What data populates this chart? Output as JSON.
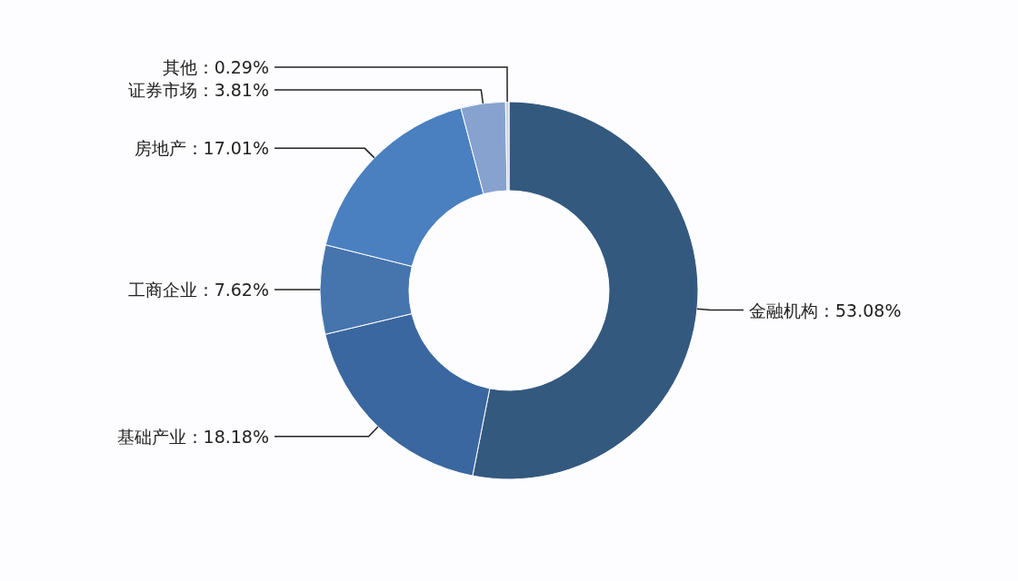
{
  "chart_data": {
    "type": "donut",
    "categories": [
      "金融机构：53.08%",
      "基础产业：18.18%",
      "工商企业：7.62%",
      "房地产：17.01%",
      "证券市场：3.81%",
      "其他：0.29%"
    ],
    "values": [
      53.08,
      18.18,
      7.62,
      17.01,
      3.81,
      0.29
    ],
    "colors": [
      "#34597f",
      "#3b67a0",
      "#4674ad",
      "#4a80c0",
      "#87a2ce",
      "#c9d2e2"
    ]
  }
}
